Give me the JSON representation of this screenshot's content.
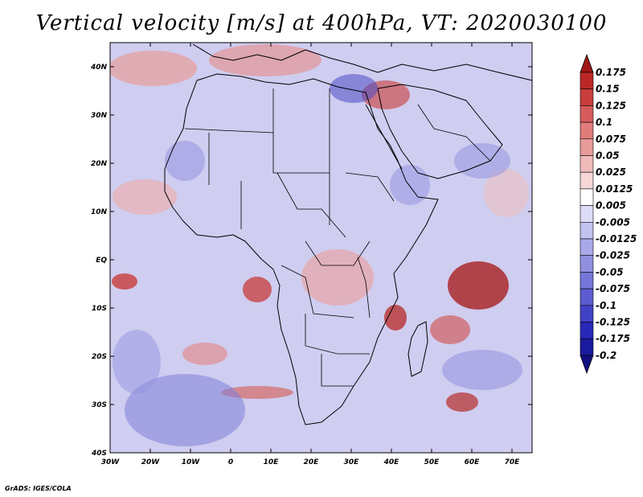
{
  "title": "Vertical velocity [m/s] at 400hPa, VT: 2020030100",
  "credit": "GrADS: IGES/COLA",
  "map": {
    "lon_labels": [
      "30W",
      "20W",
      "10W",
      "0",
      "10E",
      "20E",
      "30E",
      "40E",
      "50E",
      "60E",
      "70E"
    ],
    "lat_labels": [
      "40N",
      "30N",
      "20N",
      "10N",
      "EQ",
      "10S",
      "20S",
      "30S",
      "40S"
    ],
    "lon_range": [
      -30,
      75
    ],
    "lat_range": [
      -40,
      45
    ],
    "background_color": "#cfcdf0",
    "land_line_color": "#000000"
  },
  "colorbar": {
    "labels": [
      "0.175",
      "0.15",
      "0.125",
      "0.1",
      "0.075",
      "0.05",
      "0.025",
      "0.0125",
      "0.005",
      "-0.005",
      "-0.0125",
      "-0.025",
      "-0.05",
      "-0.075",
      "-0.1",
      "-0.125",
      "-0.175",
      "-0.2"
    ],
    "colors": [
      "#a01818",
      "#bb2727",
      "#c93d3d",
      "#d65b5b",
      "#e07c7c",
      "#e89b9b",
      "#f0baba",
      "#f6d6d6",
      "#ffffff",
      "#dcdcf6",
      "#c3c3f0",
      "#a9a9e9",
      "#9090e1",
      "#7676d9",
      "#5c5cd0",
      "#4242c6",
      "#2828b8",
      "#1a1a9e",
      "#120f80"
    ]
  }
}
